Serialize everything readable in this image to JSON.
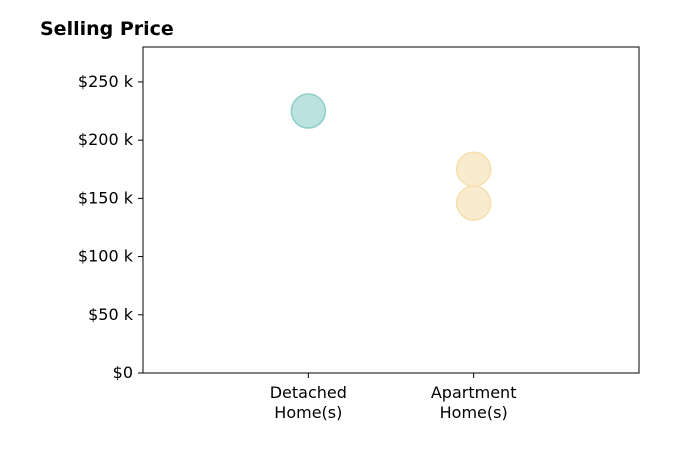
{
  "chart_data": {
    "type": "scatter",
    "title": "Selling Price",
    "categories": [
      {
        "line1": "Detached",
        "line2": "Home(s)"
      },
      {
        "line1": "Apartment",
        "line2": "Home(s)"
      }
    ],
    "points": [
      {
        "category": 0,
        "value": 225000,
        "color": "#8ecfc9"
      },
      {
        "category": 1,
        "value": 175000,
        "color": "#f5dfad"
      },
      {
        "category": 1,
        "value": 146000,
        "color": "#f5dfad"
      }
    ],
    "ylim": [
      0,
      280000
    ],
    "xlim": [
      -1,
      2
    ],
    "yticks": [
      {
        "value": 0,
        "label": "$0"
      },
      {
        "value": 50000,
        "label": "$50 k"
      },
      {
        "value": 100000,
        "label": "$100 k"
      },
      {
        "value": 150000,
        "label": "$150 k"
      },
      {
        "value": 200000,
        "label": "$200 k"
      },
      {
        "value": 250000,
        "label": "$250 k"
      }
    ],
    "grid": false,
    "legend": "none"
  }
}
